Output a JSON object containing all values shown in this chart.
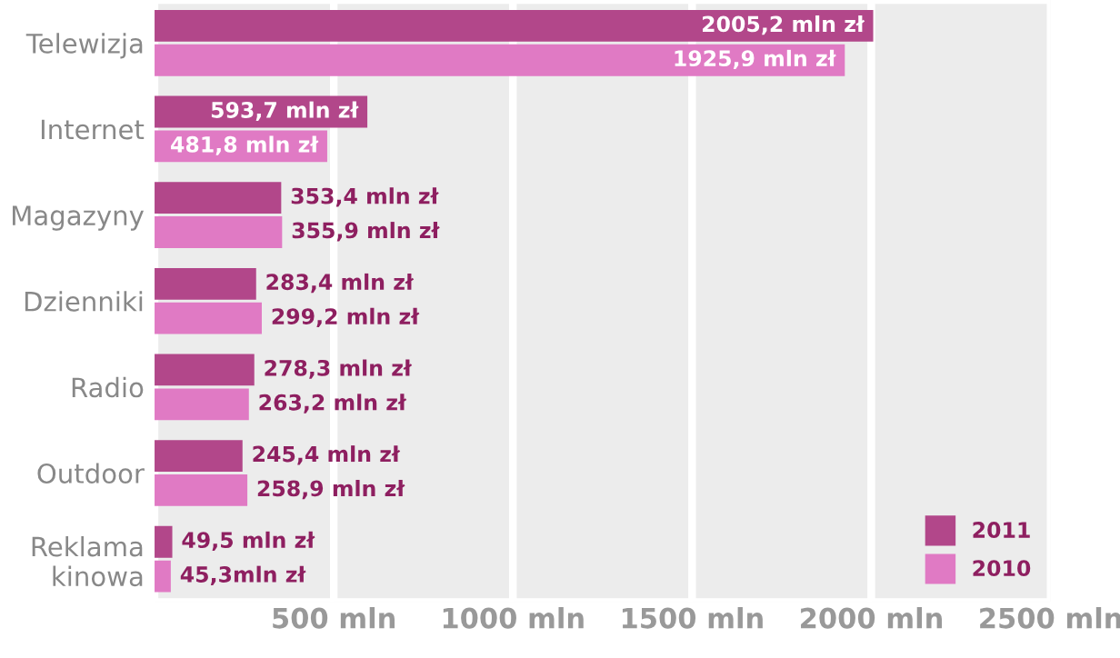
{
  "chart_data": {
    "type": "bar",
    "orientation": "horizontal",
    "categories": [
      "Telewizja",
      "Internet",
      "Magazyny",
      "Dzienniki",
      "Radio",
      "Outdoor",
      "Reklama\nkinowa"
    ],
    "series": [
      {
        "name": "2011",
        "color": "#b2478a",
        "values": [
          2005.2,
          593.7,
          353.4,
          283.4,
          278.3,
          245.4,
          49.5
        ],
        "value_labels": [
          "2005,2 mln zł",
          "593,7 mln zł",
          "353,4 mln zł",
          "283,4 mln zł",
          "278,3 mln zł",
          "245,4 mln zł",
          "49,5 mln zł"
        ]
      },
      {
        "name": "2010",
        "color": "#e07ac4",
        "values": [
          1925.9,
          481.8,
          355.9,
          299.2,
          263.2,
          258.9,
          45.3
        ],
        "value_labels": [
          "1925,9 mln zł",
          "481,8 mln zł",
          "355,9 mln zł",
          "299,2 mln zł",
          "263,2 mln zł",
          "258,9 mln zł",
          "45,3mln zł"
        ]
      }
    ],
    "xlim": [
      0,
      2500
    ],
    "xticks": [
      {
        "value": 500,
        "label": "500 mln"
      },
      {
        "value": 1000,
        "label": "1000 mln"
      },
      {
        "value": 1500,
        "label": "1500 mln"
      },
      {
        "value": 2000,
        "label": "2000 mln"
      },
      {
        "value": 2500,
        "label": "2500 mln"
      }
    ],
    "bands": [
      {
        "axis": "x",
        "from": 0,
        "to": 500,
        "color": "#ececec"
      },
      {
        "axis": "x",
        "from": 500,
        "to": 1000,
        "color": "#ececec"
      },
      {
        "axis": "x",
        "from": 1000,
        "to": 1500,
        "color": "#ececec"
      },
      {
        "axis": "x",
        "from": 1500,
        "to": 2000,
        "color": "#ececec"
      },
      {
        "axis": "x",
        "from": 2000,
        "to": 2500,
        "color": "#ececec"
      }
    ],
    "grid": false,
    "legend": "bottom right"
  }
}
